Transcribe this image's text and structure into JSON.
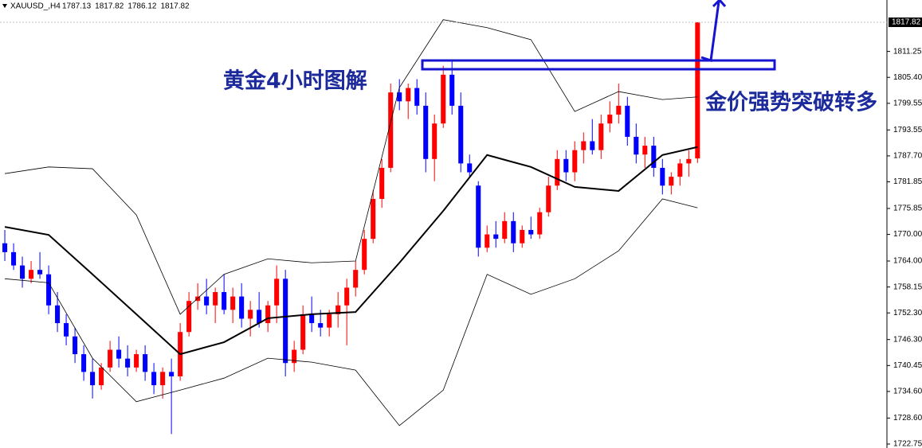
{
  "chart_data": {
    "type": "candlestick",
    "symbol": "XAUUSD_,H4",
    "ohlc": [
      1787.13,
      1817.82,
      1786.12,
      1817.82
    ],
    "annotations": [
      "黄金4小时图解",
      "金价强势突破转多"
    ],
    "up_color": "#ff0000",
    "down_color": "#0000ff",
    "ylim": [
      1721.85,
      1822.84
    ],
    "xlim": [
      -0.55,
      100.6
    ],
    "yticks": [
      1811.25,
      {
        "value": 1805.4,
        "label": "1805.40"
      },
      1799.55,
      1793.55,
      {
        "value": 1787.7,
        "label": "1787.70"
      },
      1781.85,
      1775.85,
      {
        "value": 1770,
        "label": "1770.00"
      },
      {
        "value": 1764,
        "label": "1764.00"
      },
      1758.15,
      {
        "value": 1752.3,
        "label": "1752.30"
      },
      {
        "value": 1746.3,
        "label": "1746.30"
      },
      1740.45,
      {
        "value": 1734.6,
        "label": "1734.60"
      },
      {
        "value": 1728.6,
        "label": "1728.60"
      },
      1722.75
    ],
    "candles": {
      "open": [
        1768,
        1766,
        1763,
        1760,
        1762,
        1761,
        1754,
        1750,
        1747,
        1743,
        1739,
        1736,
        1740,
        1744,
        1742,
        1740,
        1743,
        1739,
        1736,
        1739,
        1738,
        1748,
        1755,
        1756,
        1754,
        1757,
        1753,
        1756,
        1751,
        1753,
        1750,
        1754,
        1760,
        1741,
        1744,
        1752,
        1750,
        1749,
        1752,
        1754,
        1758,
        1762,
        1769,
        1778,
        1785,
        1802,
        1800,
        1803,
        1799,
        1787,
        1795,
        1806,
        1799,
        1786,
        1781,
        1767,
        1770,
        1769,
        1773,
        1768,
        1771,
        1770,
        1775,
        1781,
        1787,
        1784,
        1789,
        1791,
        1789,
        1795,
        1797,
        1799,
        1792,
        1788,
        1790,
        1785,
        1781,
        1783,
        1786,
        1787.13
      ],
      "high": [
        1771,
        1768,
        1765,
        1764,
        1766,
        1763,
        1757,
        1752,
        1749,
        1745,
        1742,
        1741,
        1746,
        1747,
        1745,
        1744,
        1745,
        1741,
        1740,
        1742,
        1750,
        1757,
        1759,
        1760,
        1758,
        1761,
        1758,
        1759,
        1755,
        1757,
        1755,
        1763,
        1762,
        1746,
        1754,
        1756,
        1753,
        1753,
        1757,
        1760,
        1764,
        1771,
        1780,
        1787,
        1804,
        1805,
        1804,
        1805,
        1802,
        1797,
        1808,
        1809,
        1802,
        1788,
        1782,
        1772,
        1773,
        1775,
        1775,
        1772,
        1774,
        1776,
        1783,
        1789,
        1789,
        1791,
        1793,
        1796,
        1797,
        1800,
        1804,
        1801,
        1795,
        1792,
        1792,
        1787,
        1784,
        1787,
        1789,
        1817.82
      ],
      "low": [
        1764,
        1762,
        1758,
        1759,
        1760,
        1752,
        1748,
        1745,
        1741,
        1737,
        1733,
        1735,
        1739,
        1740,
        1738,
        1739,
        1737,
        1734,
        1733,
        1725,
        1737,
        1747,
        1753,
        1752,
        1750,
        1752,
        1750,
        1749,
        1747,
        1749,
        1748,
        1750,
        1738,
        1739,
        1743,
        1748,
        1747,
        1747,
        1749,
        1745,
        1756,
        1761,
        1768,
        1776,
        1784,
        1798,
        1796,
        1797,
        1784,
        1782,
        1794,
        1797,
        1784,
        1783,
        1765,
        1766,
        1767,
        1768,
        1766,
        1767,
        1769,
        1769,
        1774,
        1780,
        1782,
        1782,
        1786,
        1788,
        1787,
        1793,
        1795,
        1790,
        1786,
        1785,
        1783,
        1779,
        1779,
        1781,
        1783,
        1786.12
      ],
      "close": [
        1766,
        1763,
        1760,
        1762,
        1761,
        1754,
        1750,
        1747,
        1743,
        1739,
        1736,
        1740,
        1744,
        1742,
        1740,
        1743,
        1739,
        1736,
        1739,
        1738,
        1748,
        1755,
        1756,
        1754,
        1757,
        1753,
        1756,
        1751,
        1753,
        1750,
        1754,
        1760,
        1741,
        1744,
        1752,
        1750,
        1749,
        1752,
        1754,
        1758,
        1762,
        1769,
        1778,
        1785,
        1802,
        1800,
        1803,
        1799,
        1787,
        1795,
        1806,
        1799,
        1786,
        1784,
        1767,
        1770,
        1769,
        1773,
        1768,
        1771,
        1770,
        1775,
        1781,
        1787,
        1784,
        1789,
        1791,
        1789,
        1795,
        1797,
        1799,
        1792,
        1788,
        1790,
        1785,
        1781,
        1783,
        1786,
        1787,
        1817.82
      ]
    },
    "bands": {
      "x": [
        0,
        5,
        10,
        15,
        20,
        25,
        30,
        35,
        40,
        45,
        50,
        55,
        60,
        65,
        70,
        75,
        79
      ],
      "series": [
        {
          "color": "#000000",
          "values": [
            1783.7,
            1785.2,
            1784.8,
            1774.4,
            1752.0,
            1761.0,
            1764.5,
            1763.6,
            1764.0,
            1803.1,
            1818.4,
            1816.6,
            1813.9,
            1797.7,
            1802.2,
            1800.4,
            1801.0
          ]
        },
        {
          "color": "#000000",
          "values": [
            1771.7,
            1769.9,
            1761.0,
            1752.0,
            1743.0,
            1745.7,
            1751.1,
            1752.0,
            1752.5,
            1763.6,
            1775.3,
            1787.9,
            1785.2,
            1780.7,
            1779.8,
            1787.9,
            1789.7
          ]
        },
        {
          "color": "#000000",
          "values": [
            1760.0,
            1759.1,
            1742.1,
            1732.3,
            1734.9,
            1737.6,
            1742.1,
            1741.2,
            1739.4,
            1726.9,
            1734.9,
            1761.0,
            1756.5,
            1760.0,
            1766.3,
            1778.0,
            1776.0
          ]
        }
      ]
    }
  }
}
